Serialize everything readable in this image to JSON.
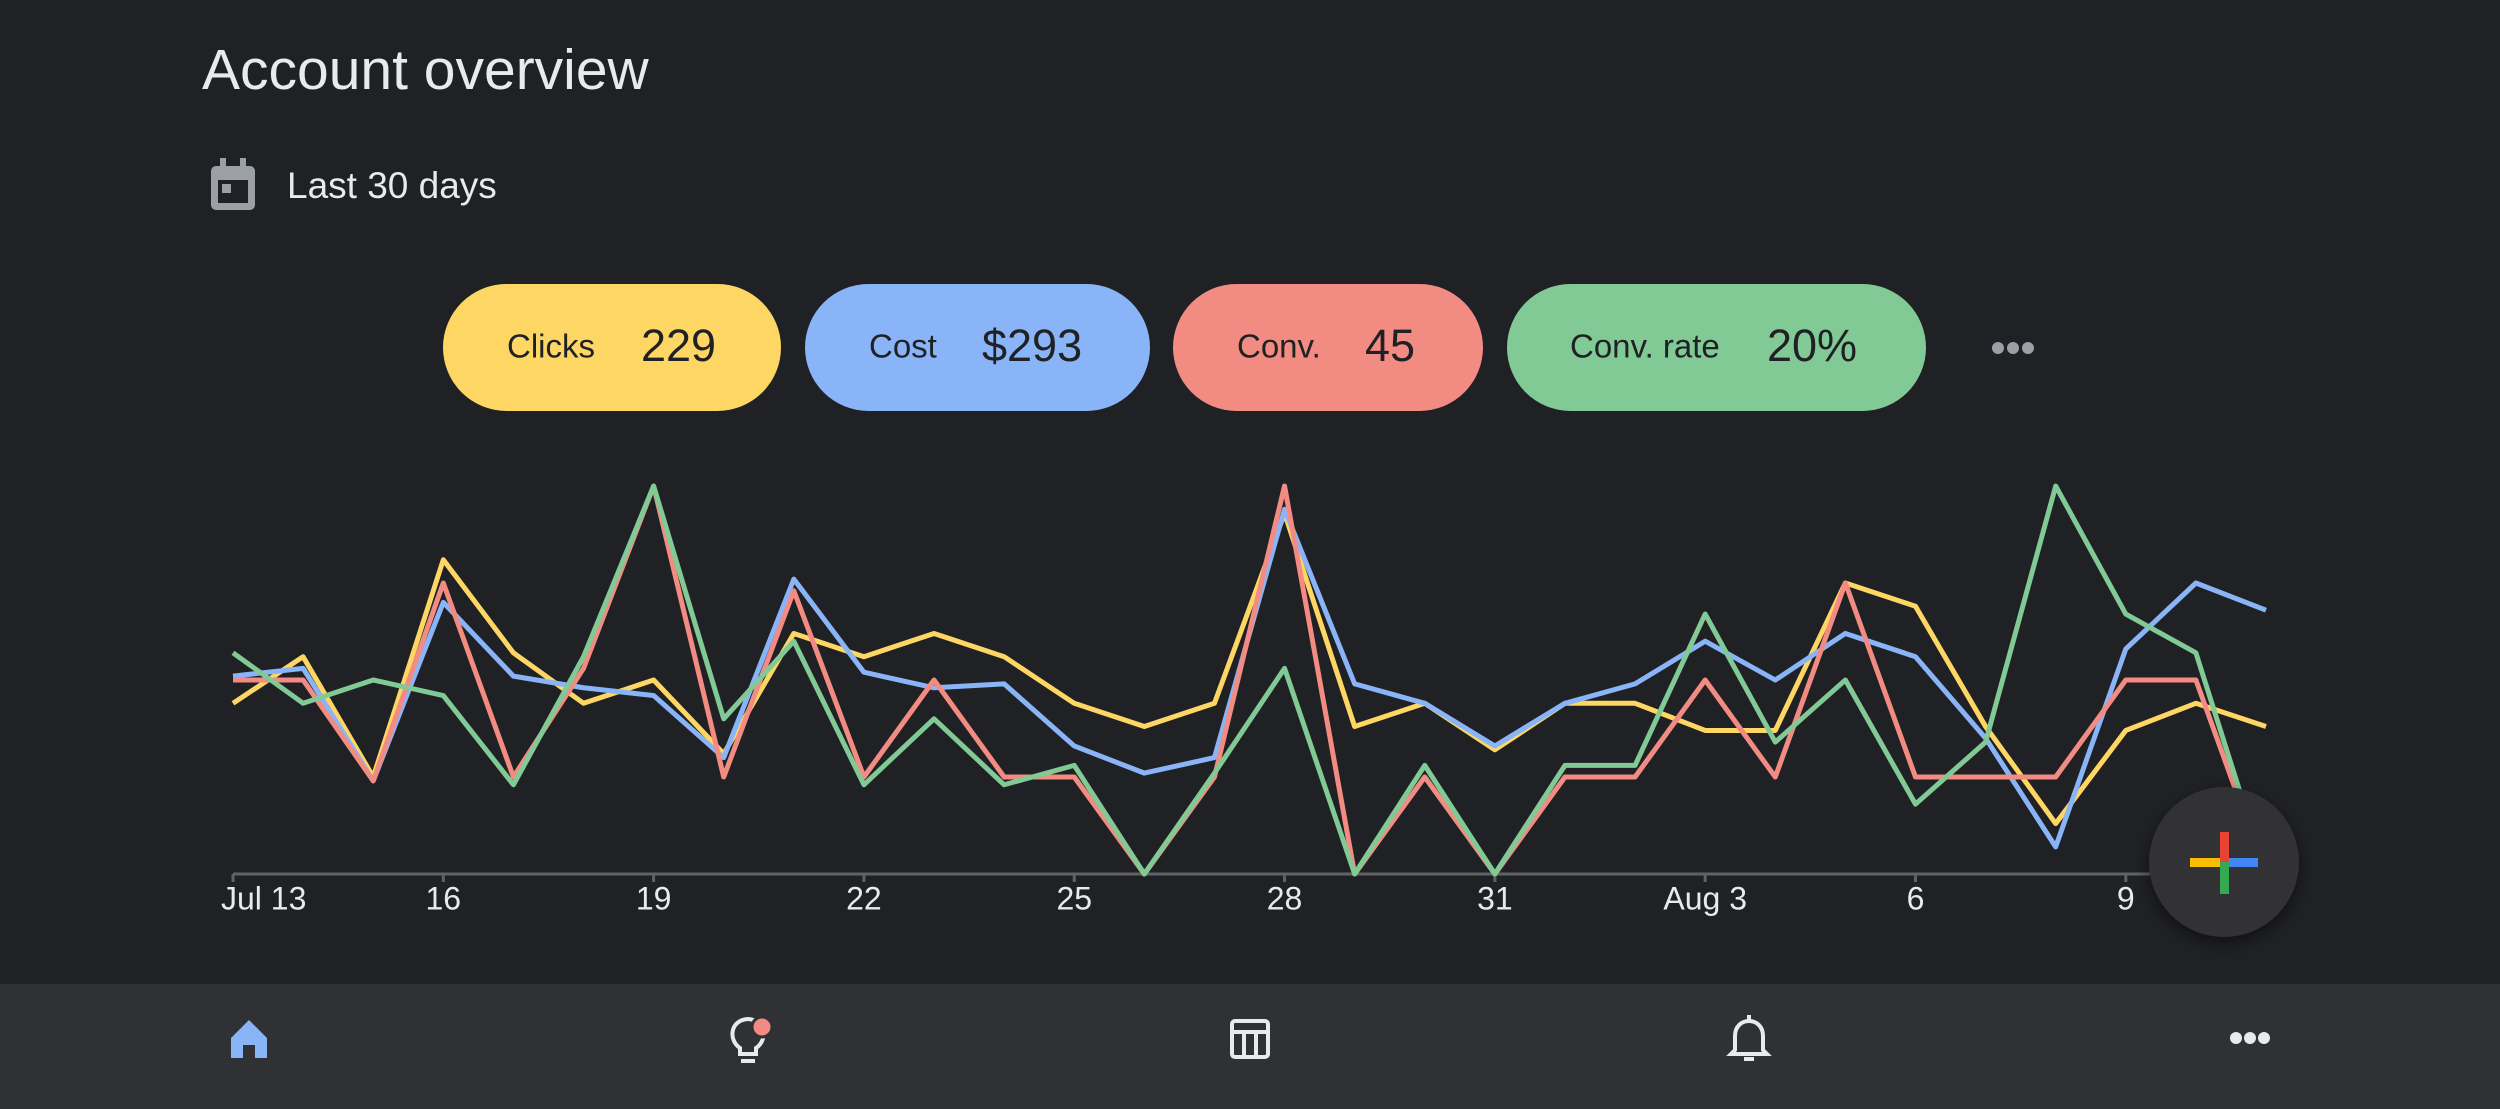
{
  "header": {
    "title": "Account overview",
    "date_range": "Last 30 days"
  },
  "totals": [
    "229",
    "$293",
    "45",
    "20%"
  ],
  "chart_data": {
    "type": "line",
    "categories": [
      "Jul 13",
      null,
      null,
      "16",
      null,
      null,
      "19",
      null,
      null,
      "22",
      null,
      null,
      "25",
      null,
      null,
      "28",
      null,
      null,
      "31",
      null,
      null,
      "Aug 3",
      null,
      null,
      "6",
      null,
      null,
      "9",
      null,
      null
    ],
    "ylim": [
      0,
      100
    ],
    "series": [
      {
        "name": "Clicks",
        "color": "#fdd663",
        "values": [
          44,
          56,
          25,
          81,
          57,
          44,
          50,
          31,
          62,
          56,
          62,
          56,
          44,
          38,
          44,
          93,
          38,
          44,
          32,
          44,
          44,
          37,
          37,
          75,
          69,
          38,
          13,
          37,
          44,
          38
        ]
      },
      {
        "name": "Cost",
        "color": "#8ab4f8",
        "values": [
          51,
          53,
          24,
          70,
          51,
          48,
          46,
          30,
          76,
          52,
          48,
          49,
          33,
          26,
          30,
          94,
          49,
          44,
          33,
          44,
          49,
          60,
          50,
          62,
          56,
          35,
          7,
          58,
          75,
          68
        ]
      },
      {
        "name": "Conv.",
        "color": "#f28b82",
        "values": [
          50,
          50,
          24,
          75,
          25,
          53,
          100,
          25,
          73,
          25,
          50,
          25,
          25,
          0,
          25,
          100,
          0,
          25,
          0,
          25,
          25,
          50,
          25,
          75,
          25,
          25,
          25,
          50,
          50,
          0
        ]
      },
      {
        "name": "Conv. rate",
        "color": "#81c995",
        "values": [
          57,
          44,
          50,
          46,
          23,
          56,
          100,
          40,
          60,
          23,
          40,
          23,
          28,
          0,
          26,
          53,
          0,
          28,
          0,
          28,
          28,
          67,
          34,
          50,
          18,
          34,
          100,
          67,
          57,
          0
        ]
      }
    ]
  }
}
